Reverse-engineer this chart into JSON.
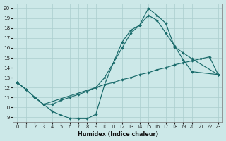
{
  "xlabel": "Humidex (Indice chaleur)",
  "xlim": [
    -0.5,
    23.5
  ],
  "ylim": [
    8.5,
    20.5
  ],
  "xticks": [
    0,
    1,
    2,
    3,
    4,
    5,
    6,
    7,
    8,
    9,
    10,
    11,
    12,
    13,
    14,
    15,
    16,
    17,
    18,
    19,
    20,
    21,
    22,
    23
  ],
  "yticks": [
    9,
    10,
    11,
    12,
    13,
    14,
    15,
    16,
    17,
    18,
    19,
    20
  ],
  "bg_color": "#cce8e8",
  "grid_color": "#aacece",
  "line_color": "#1a6b6b",
  "line1_x": [
    0,
    1,
    2,
    3,
    4,
    5,
    6,
    7,
    8,
    9,
    10,
    11,
    12,
    13,
    14,
    15,
    16,
    17,
    18,
    19,
    20,
    23
  ],
  "line1_y": [
    12.5,
    11.8,
    11.0,
    10.3,
    9.6,
    9.2,
    8.9,
    8.85,
    8.85,
    9.3,
    12.3,
    14.5,
    16.6,
    17.8,
    18.3,
    20.0,
    19.3,
    18.5,
    16.1,
    15.5,
    14.9,
    13.3
  ],
  "line2_x": [
    0,
    1,
    2,
    3,
    9,
    10,
    11,
    12,
    13,
    14,
    15,
    16,
    17,
    18,
    19,
    20,
    23
  ],
  "line2_y": [
    12.5,
    11.8,
    11.0,
    10.3,
    12.0,
    13.0,
    14.5,
    16.0,
    17.5,
    18.3,
    19.3,
    18.8,
    17.5,
    16.2,
    14.8,
    13.6,
    13.3
  ],
  "line3_x": [
    0,
    1,
    2,
    3,
    4,
    5,
    6,
    7,
    8,
    9,
    10,
    11,
    12,
    13,
    14,
    15,
    16,
    17,
    18,
    19,
    20,
    21,
    22,
    23
  ],
  "line3_y": [
    12.5,
    11.8,
    11.0,
    10.3,
    10.3,
    10.7,
    11.0,
    11.3,
    11.6,
    12.0,
    12.3,
    12.5,
    12.8,
    13.0,
    13.3,
    13.5,
    13.8,
    14.0,
    14.3,
    14.5,
    14.7,
    14.9,
    15.1,
    13.3
  ]
}
